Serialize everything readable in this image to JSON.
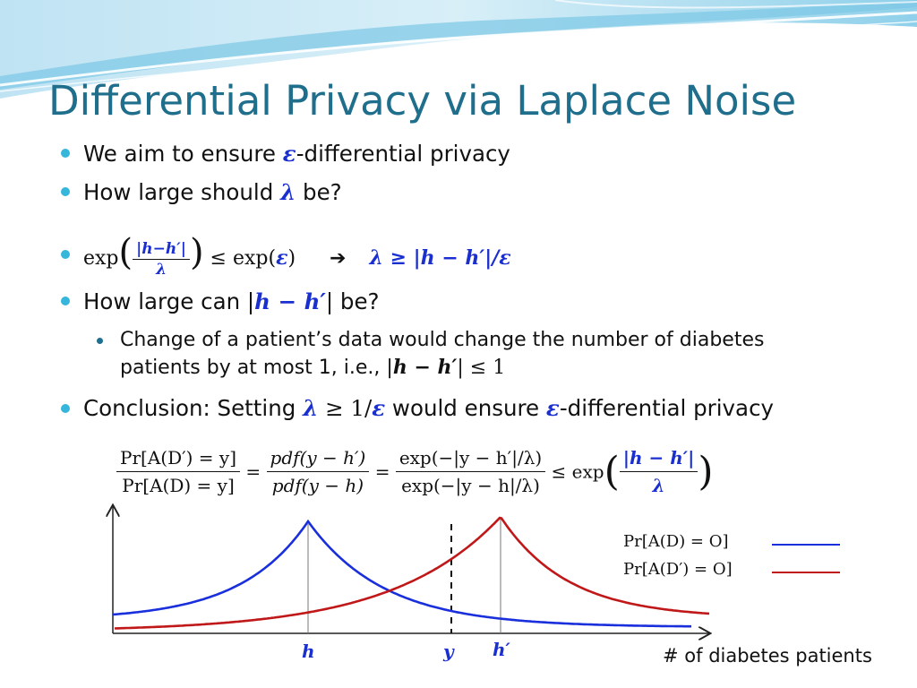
{
  "title": "Differential Privacy via Laplace Noise",
  "bullets": {
    "b1_pre": "We aim to ensure ",
    "b1_sym": "ε",
    "b1_post": "-differential privacy",
    "b2_pre": "How large should ",
    "b2_sym": "λ",
    "b2_post": " be?",
    "b3_exp": "exp",
    "b3_num": "|h−h′|",
    "b3_den": "λ",
    "b3_leq": " ≤ exp(",
    "b3_eps": "ε",
    "b3_close": ")",
    "b3_arrow": "➔",
    "b3_rhs": "λ ≥ |h − h′|/ε",
    "b4_pre": "How large can |",
    "b4_sym": "h − h′",
    "b4_post": "| be?",
    "sub_line1": "Change of a patient’s data would change the number of diabetes",
    "sub_line2_pre": "patients by at most 1, i.e., |",
    "sub_line2_sym": "h − h′",
    "sub_line2_post": "| ≤ 1",
    "b5_pre": "Conclusion: Setting ",
    "b5_sym1": "λ",
    "b5_mid": " ≥ 1/",
    "b5_sym2": "ε",
    "b5_post1": " would ensure ",
    "b5_sym3": "ε",
    "b5_post2": "-differential privacy"
  },
  "equation": {
    "f1_num": "Pr[A(D′) = y]",
    "f1_den": "Pr[A(D) = y]",
    "eq": "=",
    "f2_num": "pdf(y − h′)",
    "f2_den": "pdf(y − h)",
    "f3_num": "exp(−|y − h′|/λ)",
    "f3_den": "exp(−|y − h|/λ)",
    "leq": "≤ exp",
    "f4_num": "|h − h′|",
    "f4_den": "λ"
  },
  "chart": {
    "x_labels": {
      "h": "h",
      "y": "y",
      "hprime": "h′"
    },
    "x_caption": "# of diabetes patients",
    "legend": [
      {
        "label": "Pr[A(D) = O]",
        "color": "#1a2fdc"
      },
      {
        "label": "Pr[A(D′) = O]",
        "color": "#c01818"
      }
    ]
  },
  "chart_data": {
    "type": "line",
    "title": "",
    "xlabel": "# of diabetes patients",
    "ylabel": "",
    "series": [
      {
        "name": "Pr[A(D) = O]",
        "peak_at": "h",
        "shape": "laplace"
      },
      {
        "name": "Pr[A(D′) = O]",
        "peak_at": "h′",
        "shape": "laplace"
      }
    ],
    "x_ticks": [
      "h",
      "y",
      "h′"
    ],
    "grid": false
  }
}
